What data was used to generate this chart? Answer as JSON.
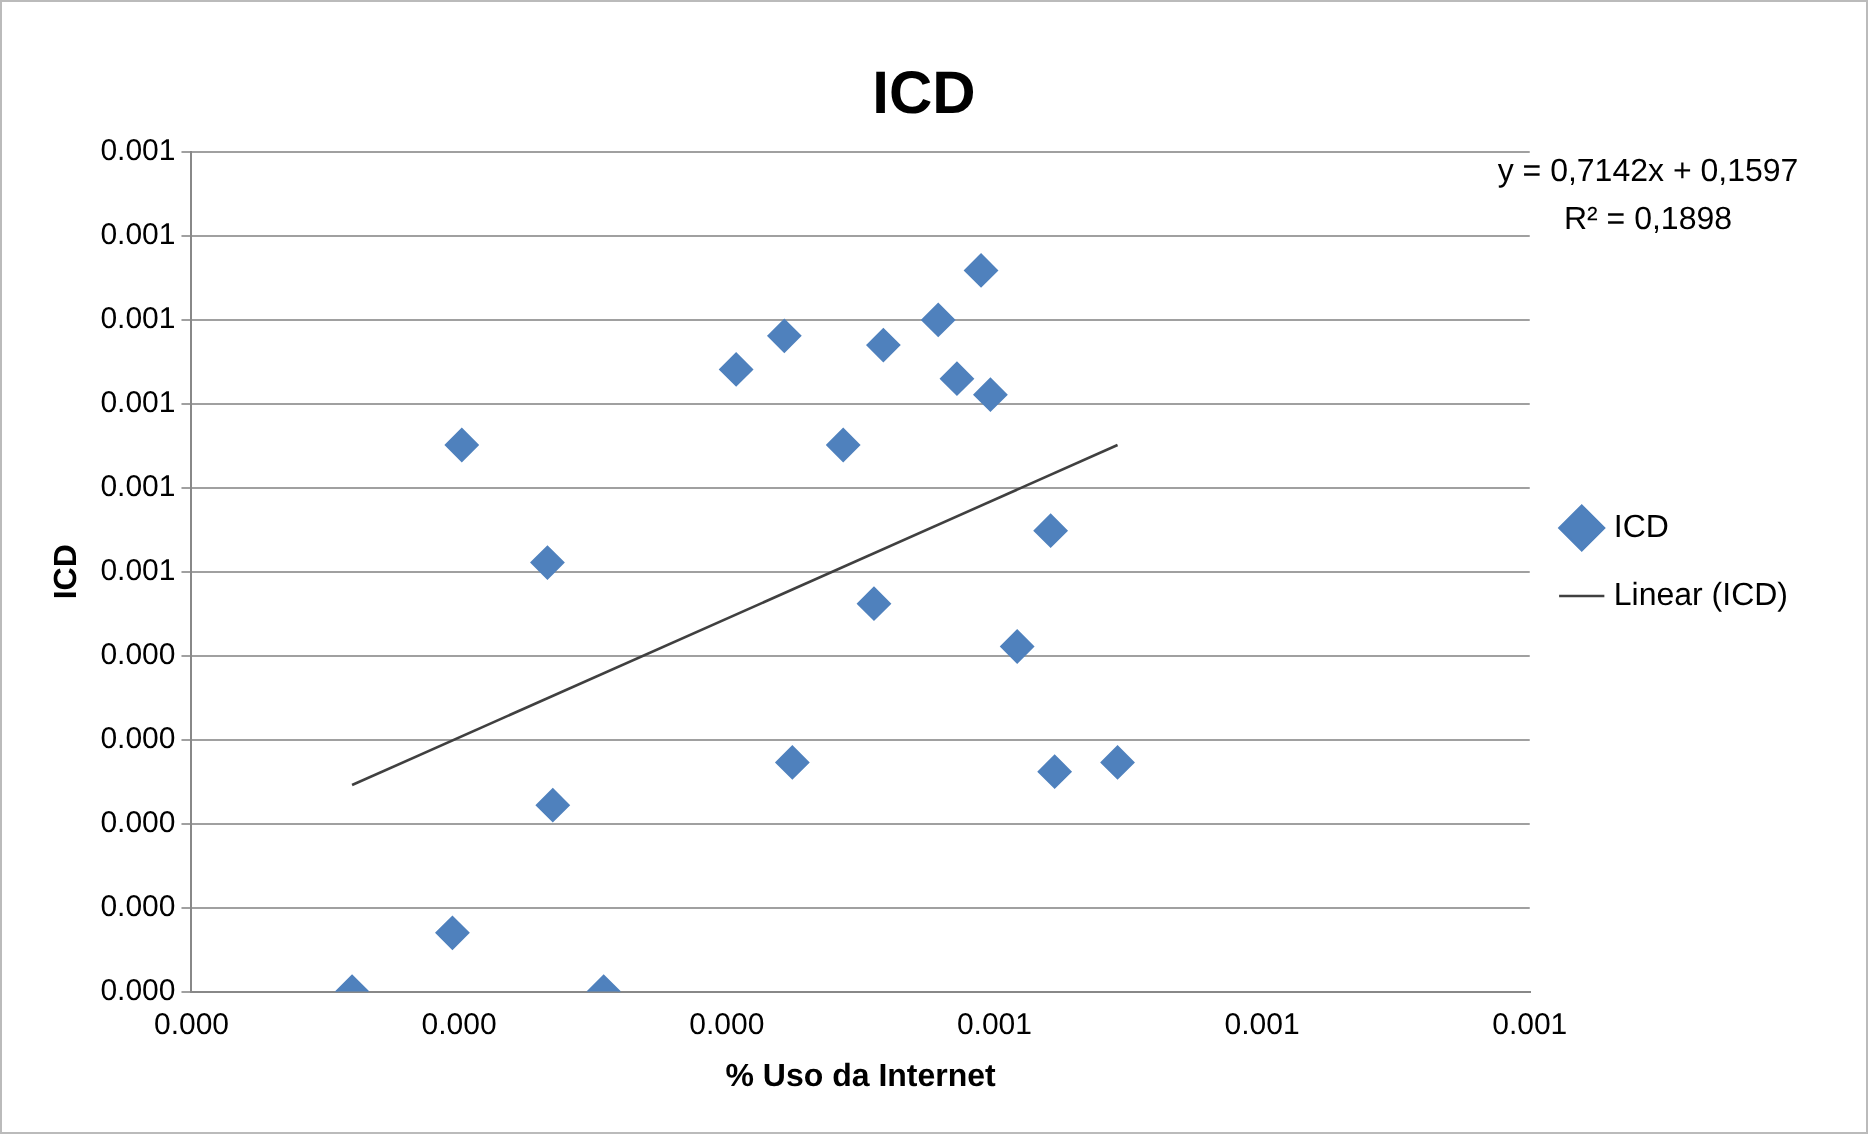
{
  "chart_data": {
    "type": "scatter",
    "title": "ICD",
    "xlabel": "% Uso da Internet",
    "ylabel": "ICD",
    "xlim": [
      0,
      0.001
    ],
    "ylim": [
      0,
      0.001
    ],
    "xticks": [
      {
        "value": 0,
        "label": "0.000"
      },
      {
        "value": 0.0002,
        "label": "0.000"
      },
      {
        "value": 0.0004,
        "label": "0.000"
      },
      {
        "value": 0.0006,
        "label": "0.001"
      },
      {
        "value": 0.0008,
        "label": "0.001"
      },
      {
        "value": 0.001,
        "label": "0.001"
      }
    ],
    "yticks": [
      {
        "value": 0,
        "label": "0.000"
      },
      {
        "value": 0.0001,
        "label": "0.000"
      },
      {
        "value": 0.0002,
        "label": "0.000"
      },
      {
        "value": 0.0003,
        "label": "0.000"
      },
      {
        "value": 0.0004,
        "label": "0.000"
      },
      {
        "value": 0.0005,
        "label": "0.001"
      },
      {
        "value": 0.0006,
        "label": "0.001"
      },
      {
        "value": 0.0007,
        "label": "0.001"
      },
      {
        "value": 0.0008,
        "label": "0.001"
      },
      {
        "value": 0.0009,
        "label": "0.001"
      },
      {
        "value": 0.001,
        "label": "0.001"
      }
    ],
    "grid": "y",
    "legend": "right",
    "series": [
      {
        "name": "ICD",
        "type": "scatter",
        "marker": "diamond",
        "color": "#4f81bd",
        "x": [
          0.00012,
          0.000195,
          0.000308,
          0.00027,
          0.000202,
          0.000266,
          0.000407,
          0.000443,
          0.000517,
          0.000558,
          0.00059,
          0.000572,
          0.000597,
          0.000487,
          0.000642,
          0.00051,
          0.000617,
          0.000449,
          0.000645,
          0.000692
        ],
        "values": [
          0,
          7e-05,
          0,
          0.000222,
          0.000651,
          0.000511,
          0.000741,
          0.000781,
          0.00077,
          0.0008,
          0.000859,
          0.00073,
          0.000711,
          0.000651,
          0.000549,
          0.000462,
          0.000411,
          0.000273,
          0.000262,
          0.000273
        ]
      },
      {
        "name": "Linear (ICD)",
        "type": "line",
        "marker": "none",
        "color": "#404040",
        "x": [
          0.00012,
          0.000692
        ],
        "values": [
          0.000246,
          0.000651
        ]
      }
    ],
    "annotations": [
      "y = 0,7142x + 0,1597",
      "R² = 0,1898"
    ]
  }
}
